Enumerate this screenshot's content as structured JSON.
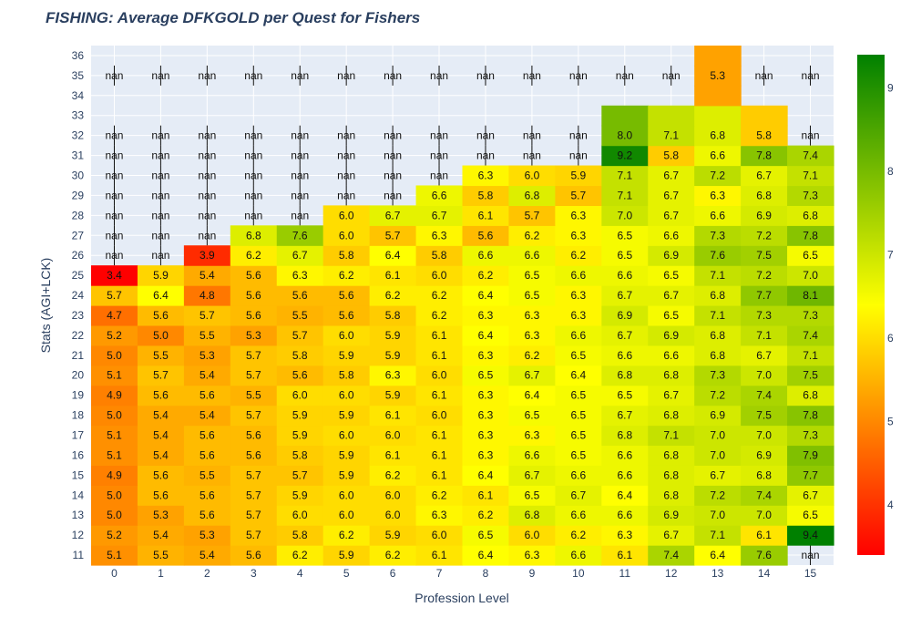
{
  "chart_data": {
    "type": "heatmap",
    "title": "FISHING: Average DFKGOLD per Quest for Fishers",
    "xlabel": "Profession Level",
    "ylabel": "Stats (AGI+LCK)",
    "x": [
      "0",
      "1",
      "2",
      "3",
      "4",
      "5",
      "6",
      "7",
      "8",
      "9",
      "10",
      "11",
      "12",
      "13",
      "14",
      "15"
    ],
    "y": [
      "11",
      "12",
      "13",
      "14",
      "15",
      "16",
      "17",
      "18",
      "19",
      "20",
      "21",
      "22",
      "23",
      "24",
      "25",
      "26",
      "27",
      "28",
      "29",
      "30",
      "31",
      "32",
      "33",
      "34",
      "35",
      "36"
    ],
    "z": [
      [
        5.1,
        5.5,
        5.4,
        5.6,
        6.2,
        5.9,
        6.2,
        6.1,
        6.4,
        6.3,
        6.6,
        6.1,
        7.4,
        6.4,
        7.6,
        "nan"
      ],
      [
        5.2,
        5.4,
        5.3,
        5.7,
        5.8,
        6.2,
        5.9,
        6.0,
        6.5,
        6.0,
        6.2,
        6.3,
        6.7,
        7.1,
        6.1,
        9.4
      ],
      [
        5.0,
        5.3,
        5.6,
        5.7,
        6.0,
        6.0,
        6.0,
        6.3,
        6.2,
        6.8,
        6.6,
        6.6,
        6.9,
        7.0,
        7.0,
        6.5
      ],
      [
        5.0,
        5.6,
        5.6,
        5.7,
        5.9,
        6.0,
        6.0,
        6.2,
        6.1,
        6.5,
        6.7,
        6.4,
        6.8,
        7.2,
        7.4,
        6.7
      ],
      [
        4.9,
        5.6,
        5.5,
        5.7,
        5.7,
        5.9,
        6.2,
        6.1,
        6.4,
        6.7,
        6.6,
        6.6,
        6.8,
        6.7,
        6.8,
        7.7
      ],
      [
        5.1,
        5.4,
        5.6,
        5.6,
        5.8,
        5.9,
        6.1,
        6.1,
        6.3,
        6.6,
        6.5,
        6.6,
        6.8,
        7.0,
        6.9,
        7.9
      ],
      [
        5.1,
        5.4,
        5.6,
        5.6,
        5.9,
        6.0,
        6.0,
        6.1,
        6.3,
        6.3,
        6.5,
        6.8,
        7.1,
        7.0,
        7.0,
        7.3
      ],
      [
        5.0,
        5.4,
        5.4,
        5.7,
        5.9,
        5.9,
        6.1,
        6.0,
        6.3,
        6.5,
        6.5,
        6.7,
        6.8,
        6.9,
        7.5,
        7.8
      ],
      [
        4.9,
        5.6,
        5.6,
        5.5,
        6.0,
        6.0,
        5.9,
        6.1,
        6.3,
        6.4,
        6.5,
        6.5,
        6.7,
        7.2,
        7.4,
        6.8
      ],
      [
        5.1,
        5.7,
        5.4,
        5.7,
        5.6,
        5.8,
        6.3,
        6.0,
        6.5,
        6.7,
        6.4,
        6.8,
        6.8,
        7.3,
        7.0,
        7.5
      ],
      [
        5.0,
        5.5,
        5.3,
        5.7,
        5.8,
        5.9,
        5.9,
        6.1,
        6.3,
        6.2,
        6.5,
        6.6,
        6.6,
        6.8,
        6.7,
        7.1
      ],
      [
        5.2,
        5.0,
        5.5,
        5.3,
        5.7,
        6.0,
        5.9,
        6.1,
        6.4,
        6.3,
        6.6,
        6.7,
        6.9,
        6.8,
        7.1,
        7.4
      ],
      [
        4.7,
        5.6,
        5.7,
        5.6,
        5.5,
        5.6,
        5.8,
        6.2,
        6.3,
        6.3,
        6.3,
        6.9,
        6.5,
        7.1,
        7.3,
        7.3
      ],
      [
        5.7,
        6.4,
        4.8,
        5.6,
        5.6,
        5.6,
        6.2,
        6.2,
        6.4,
        6.5,
        6.3,
        6.7,
        6.7,
        6.8,
        7.7,
        8.1
      ],
      [
        3.4,
        5.9,
        5.4,
        5.6,
        6.3,
        6.2,
        6.1,
        6.0,
        6.2,
        6.5,
        6.6,
        6.6,
        6.5,
        7.1,
        7.2,
        7.0
      ],
      [
        "nan",
        "nan",
        3.9,
        6.2,
        6.7,
        5.8,
        6.4,
        5.8,
        6.6,
        6.6,
        6.2,
        6.5,
        6.9,
        7.6,
        7.5,
        6.5
      ],
      [
        "nan",
        "nan",
        "nan",
        6.8,
        7.6,
        6.0,
        5.7,
        6.3,
        5.6,
        6.2,
        6.3,
        6.5,
        6.6,
        7.3,
        7.2,
        7.8
      ],
      [
        "nan",
        "nan",
        "nan",
        "nan",
        "nan",
        6.0,
        6.7,
        6.7,
        6.1,
        5.7,
        6.3,
        7.0,
        6.7,
        6.6,
        6.9,
        6.8
      ],
      [
        "nan",
        "nan",
        "nan",
        "nan",
        "nan",
        "nan",
        "nan",
        6.6,
        5.8,
        6.8,
        5.7,
        7.1,
        6.7,
        6.3,
        6.8,
        7.3
      ],
      [
        "nan",
        "nan",
        "nan",
        "nan",
        "nan",
        "nan",
        "nan",
        "nan",
        6.3,
        6.0,
        5.9,
        7.1,
        6.7,
        7.2,
        6.7,
        7.1
      ],
      [
        "nan",
        "nan",
        "nan",
        "nan",
        "nan",
        "nan",
        "nan",
        "nan",
        "nan",
        "nan",
        "nan",
        9.2,
        5.8,
        6.6,
        7.8,
        7.4
      ],
      [
        "nan",
        "nan",
        "nan",
        "nan",
        "nan",
        "nan",
        "nan",
        "nan",
        "nan",
        "nan",
        "nan",
        8.0,
        7.1,
        6.8,
        5.8,
        "nan"
      ],
      [
        null,
        null,
        null,
        null,
        null,
        null,
        null,
        null,
        null,
        null,
        null,
        8.0,
        7.1,
        6.8,
        5.8,
        null
      ],
      [
        null,
        null,
        null,
        null,
        null,
        null,
        null,
        null,
        null,
        null,
        null,
        null,
        null,
        5.3,
        null,
        null
      ],
      [
        "nan",
        "nan",
        "nan",
        "nan",
        "nan",
        "nan",
        "nan",
        "nan",
        "nan",
        "nan",
        "nan",
        "nan",
        "nan",
        5.3,
        "nan",
        "nan"
      ],
      [
        null,
        null,
        null,
        null,
        null,
        null,
        null,
        null,
        null,
        null,
        null,
        null,
        null,
        5.3,
        null,
        null
      ]
    ],
    "colorscale": [
      "#ff0000",
      "#ffff00",
      "#008000"
    ],
    "zmin": 3.4,
    "zmax": 9.4,
    "colorbar_ticks": [
      "4",
      "5",
      "6",
      "7",
      "8",
      "9"
    ],
    "grid": true
  }
}
